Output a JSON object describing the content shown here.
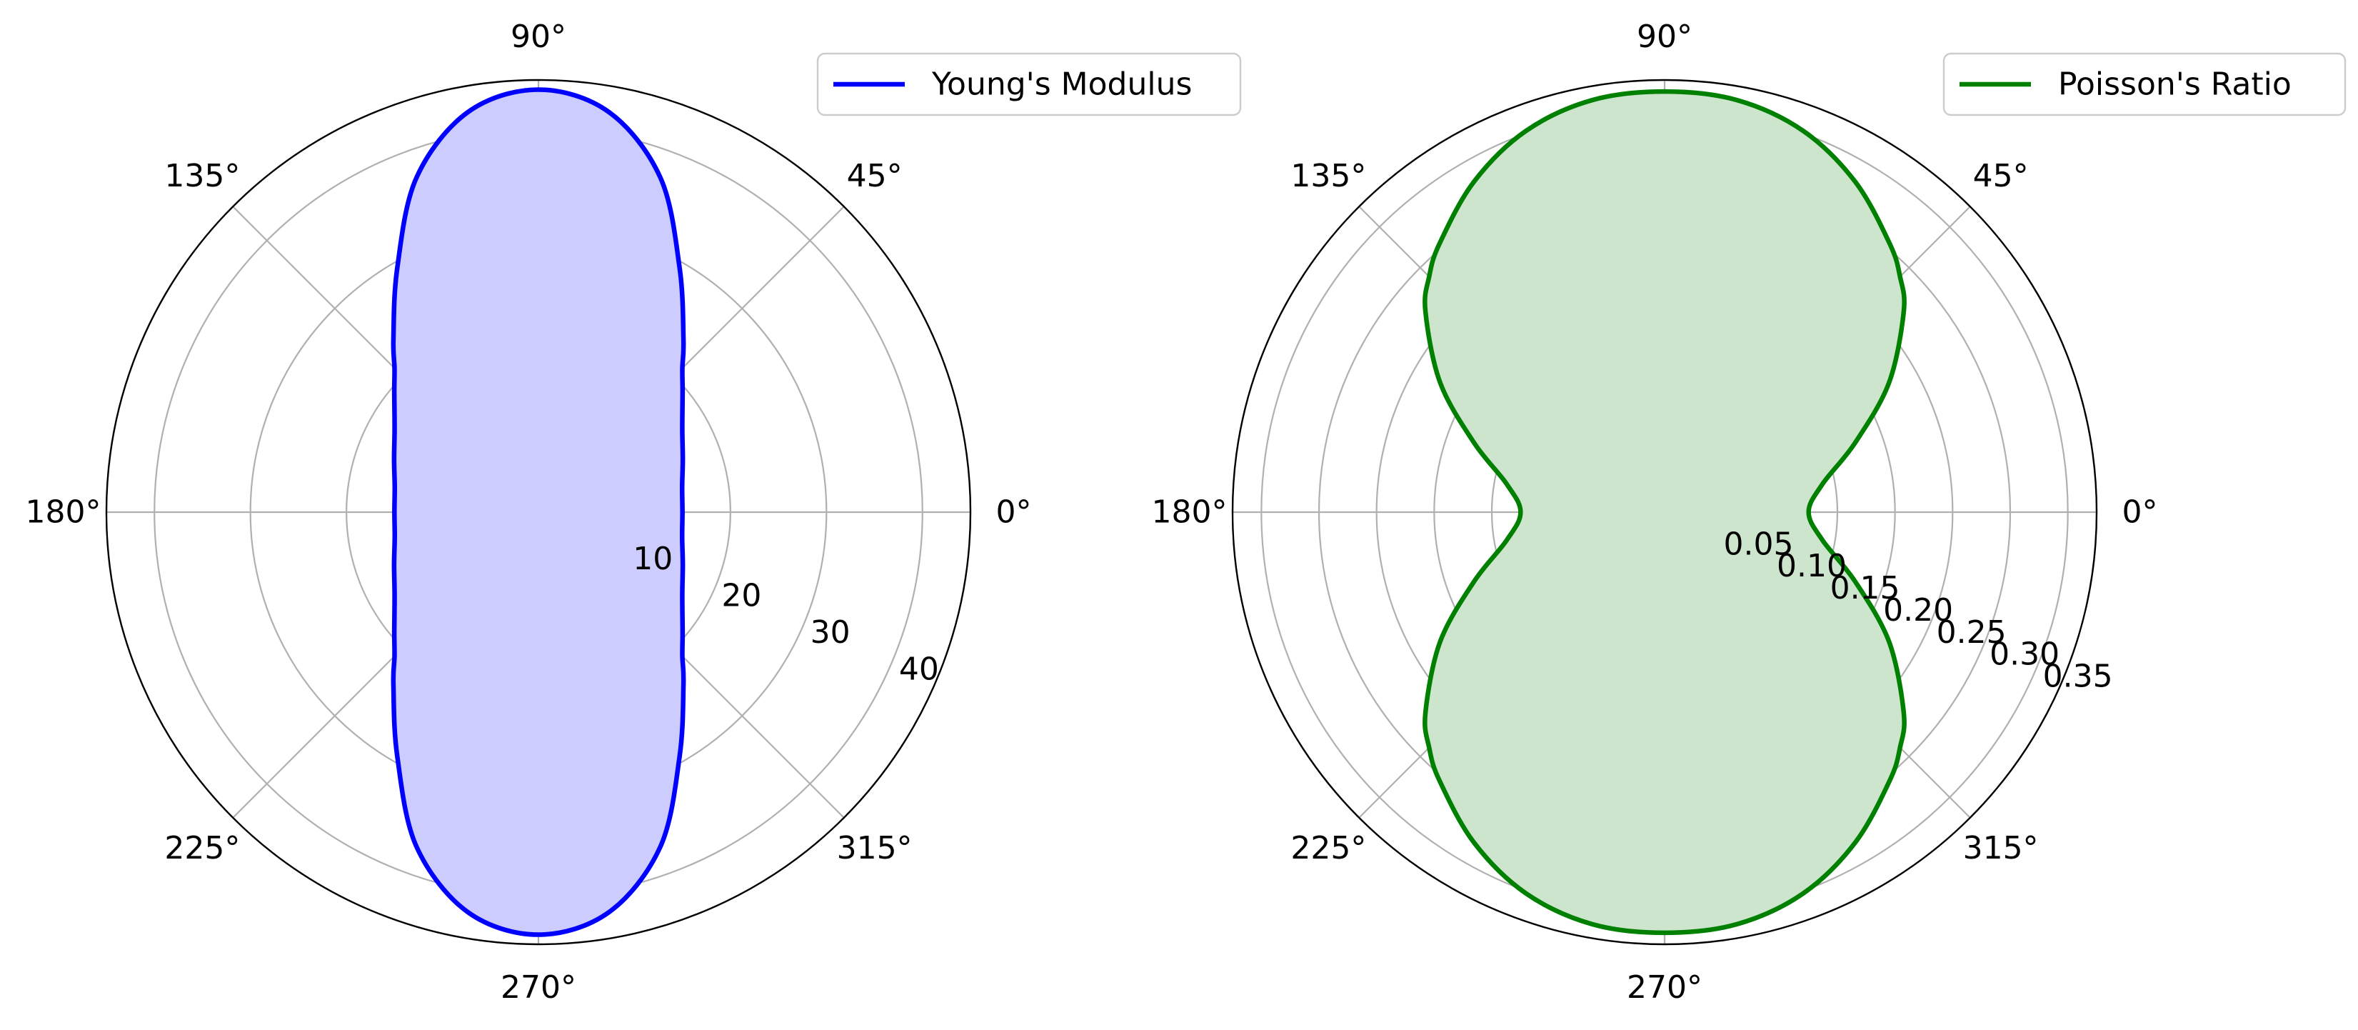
{
  "chart_data": [
    {
      "type": "polar-area",
      "title": "",
      "angle_unit": "degrees",
      "angular_ticks": [
        "0°",
        "45°",
        "90°",
        "135°",
        "180°",
        "225°",
        "270°",
        "315°"
      ],
      "radial_ticks": [
        10,
        20,
        30,
        40
      ],
      "radial_tick_labels": [
        "10",
        "20",
        "30",
        "40"
      ],
      "rlim": [
        0,
        45
      ],
      "grid": true,
      "legend_position": "upper-right",
      "series": [
        {
          "name": "Young's Modulus",
          "color": "#0000ff",
          "fill_color": "#ccccff",
          "theta": [
            0,
            10,
            20,
            30,
            40,
            45,
            50,
            60,
            70,
            80,
            90,
            100,
            110,
            120,
            130,
            135,
            140,
            150,
            160,
            170,
            180,
            190,
            200,
            210,
            220,
            225,
            230,
            240,
            250,
            260,
            270,
            280,
            290,
            300,
            310,
            315,
            320,
            330,
            340,
            350,
            360
          ],
          "r": [
            15.0,
            15.2,
            16.0,
            17.3,
            19.6,
            21.2,
            23.5,
            29.4,
            37.1,
            42.3,
            44.0,
            42.3,
            37.1,
            29.4,
            23.5,
            21.2,
            19.6,
            17.3,
            16.0,
            15.2,
            15.0,
            15.2,
            16.0,
            17.3,
            19.6,
            21.2,
            23.5,
            29.4,
            37.1,
            42.3,
            44.0,
            42.3,
            37.1,
            29.4,
            23.5,
            21.2,
            19.6,
            17.3,
            16.0,
            15.2,
            15.0
          ]
        }
      ]
    },
    {
      "type": "polar-area",
      "title": "",
      "angle_unit": "degrees",
      "angular_ticks": [
        "0°",
        "45°",
        "90°",
        "135°",
        "180°",
        "225°",
        "270°",
        "315°"
      ],
      "radial_ticks": [
        0.05,
        0.1,
        0.15,
        0.2,
        0.25,
        0.3,
        0.35
      ],
      "radial_tick_labels": [
        "0.05",
        "0.10",
        "0.15",
        "0.20",
        "0.25",
        "0.30",
        "0.35"
      ],
      "rlim": [
        0,
        0.375
      ],
      "grid": true,
      "legend_position": "upper-right",
      "series": [
        {
          "name": "Poisson's Ratio",
          "color": "#008000",
          "fill_color": "#cce5cc",
          "theta": [
            0,
            10,
            20,
            30,
            40,
            45,
            50,
            60,
            70,
            80,
            90,
            100,
            110,
            120,
            130,
            135,
            140,
            150,
            160,
            170,
            180,
            190,
            200,
            210,
            220,
            225,
            230,
            240,
            250,
            260,
            270,
            280,
            290,
            300,
            310,
            315,
            320,
            330,
            340,
            350,
            360
          ],
          "r": [
            0.125,
            0.139,
            0.176,
            0.225,
            0.271,
            0.289,
            0.304,
            0.331,
            0.352,
            0.363,
            0.365,
            0.363,
            0.352,
            0.331,
            0.304,
            0.289,
            0.271,
            0.225,
            0.176,
            0.139,
            0.125,
            0.139,
            0.176,
            0.225,
            0.271,
            0.289,
            0.304,
            0.331,
            0.352,
            0.363,
            0.365,
            0.363,
            0.352,
            0.331,
            0.304,
            0.289,
            0.271,
            0.225,
            0.176,
            0.139,
            0.125
          ]
        }
      ]
    }
  ]
}
